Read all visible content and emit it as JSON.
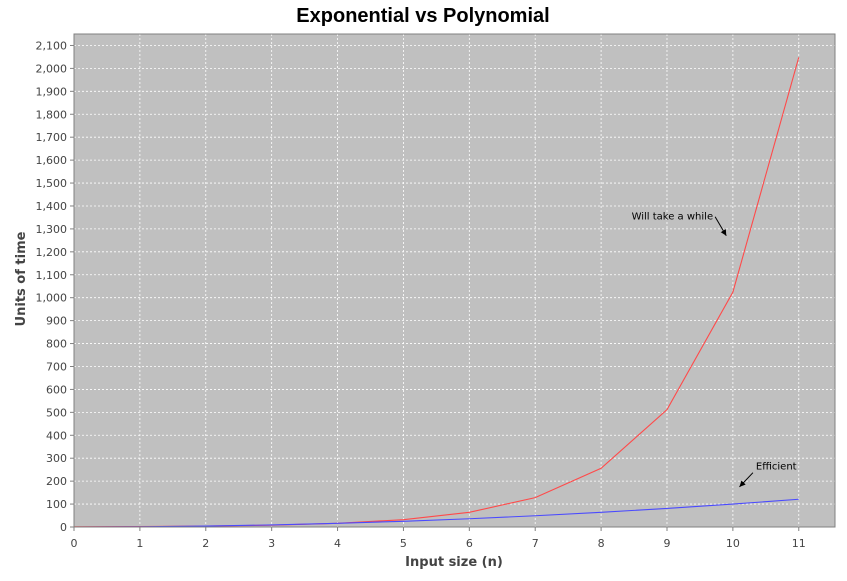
{
  "chart_data": {
    "type": "line",
    "title": "Exponential vs Polynomial",
    "xlabel": "Input size (n)",
    "ylabel": "Units of time",
    "xlim": [
      0,
      11.55
    ],
    "ylim": [
      0,
      2150
    ],
    "x_ticks": [
      0,
      1,
      2,
      3,
      4,
      5,
      6,
      7,
      8,
      9,
      10,
      11
    ],
    "x_tick_labels": [
      "0",
      "1",
      "2",
      "3",
      "4",
      "5",
      "6",
      "7",
      "8",
      "9",
      "10",
      "11"
    ],
    "y_ticks": [
      0,
      100,
      200,
      300,
      400,
      500,
      600,
      700,
      800,
      900,
      1000,
      1100,
      1200,
      1300,
      1400,
      1500,
      1600,
      1700,
      1800,
      1900,
      2000,
      2100
    ],
    "y_tick_labels": [
      "0",
      "100",
      "200",
      "300",
      "400",
      "500",
      "600",
      "700",
      "800",
      "900",
      "1,000",
      "1,100",
      "1,200",
      "1,300",
      "1,400",
      "1,500",
      "1,600",
      "1,700",
      "1,800",
      "1,900",
      "2,000",
      "2,100"
    ],
    "grid": true,
    "legend": "none",
    "plot_background": "#c0c0c0",
    "grid_color": "#ffffff",
    "series": [
      {
        "color": "#ff4a4a",
        "x": [
          0,
          1,
          2,
          3,
          4,
          5,
          6,
          7,
          8,
          9,
          10,
          11
        ],
        "y": [
          1,
          2,
          4,
          8,
          16,
          32,
          64,
          128,
          256,
          512,
          1024,
          2048
        ]
      },
      {
        "color": "#4a4aff",
        "x": [
          0,
          1,
          2,
          3,
          4,
          5,
          6,
          7,
          8,
          9,
          10,
          11
        ],
        "y": [
          0,
          1,
          4,
          9,
          16,
          25,
          36,
          49,
          64,
          81,
          100,
          121
        ]
      }
    ],
    "annotations": [
      {
        "text": "Will take a while",
        "x": 9.7,
        "y": 1340,
        "arrow_to": [
          9.9,
          1270
        ]
      },
      {
        "text": "Efficient",
        "x": 10.35,
        "y": 250,
        "arrow_to": [
          10.1,
          175
        ]
      }
    ]
  }
}
